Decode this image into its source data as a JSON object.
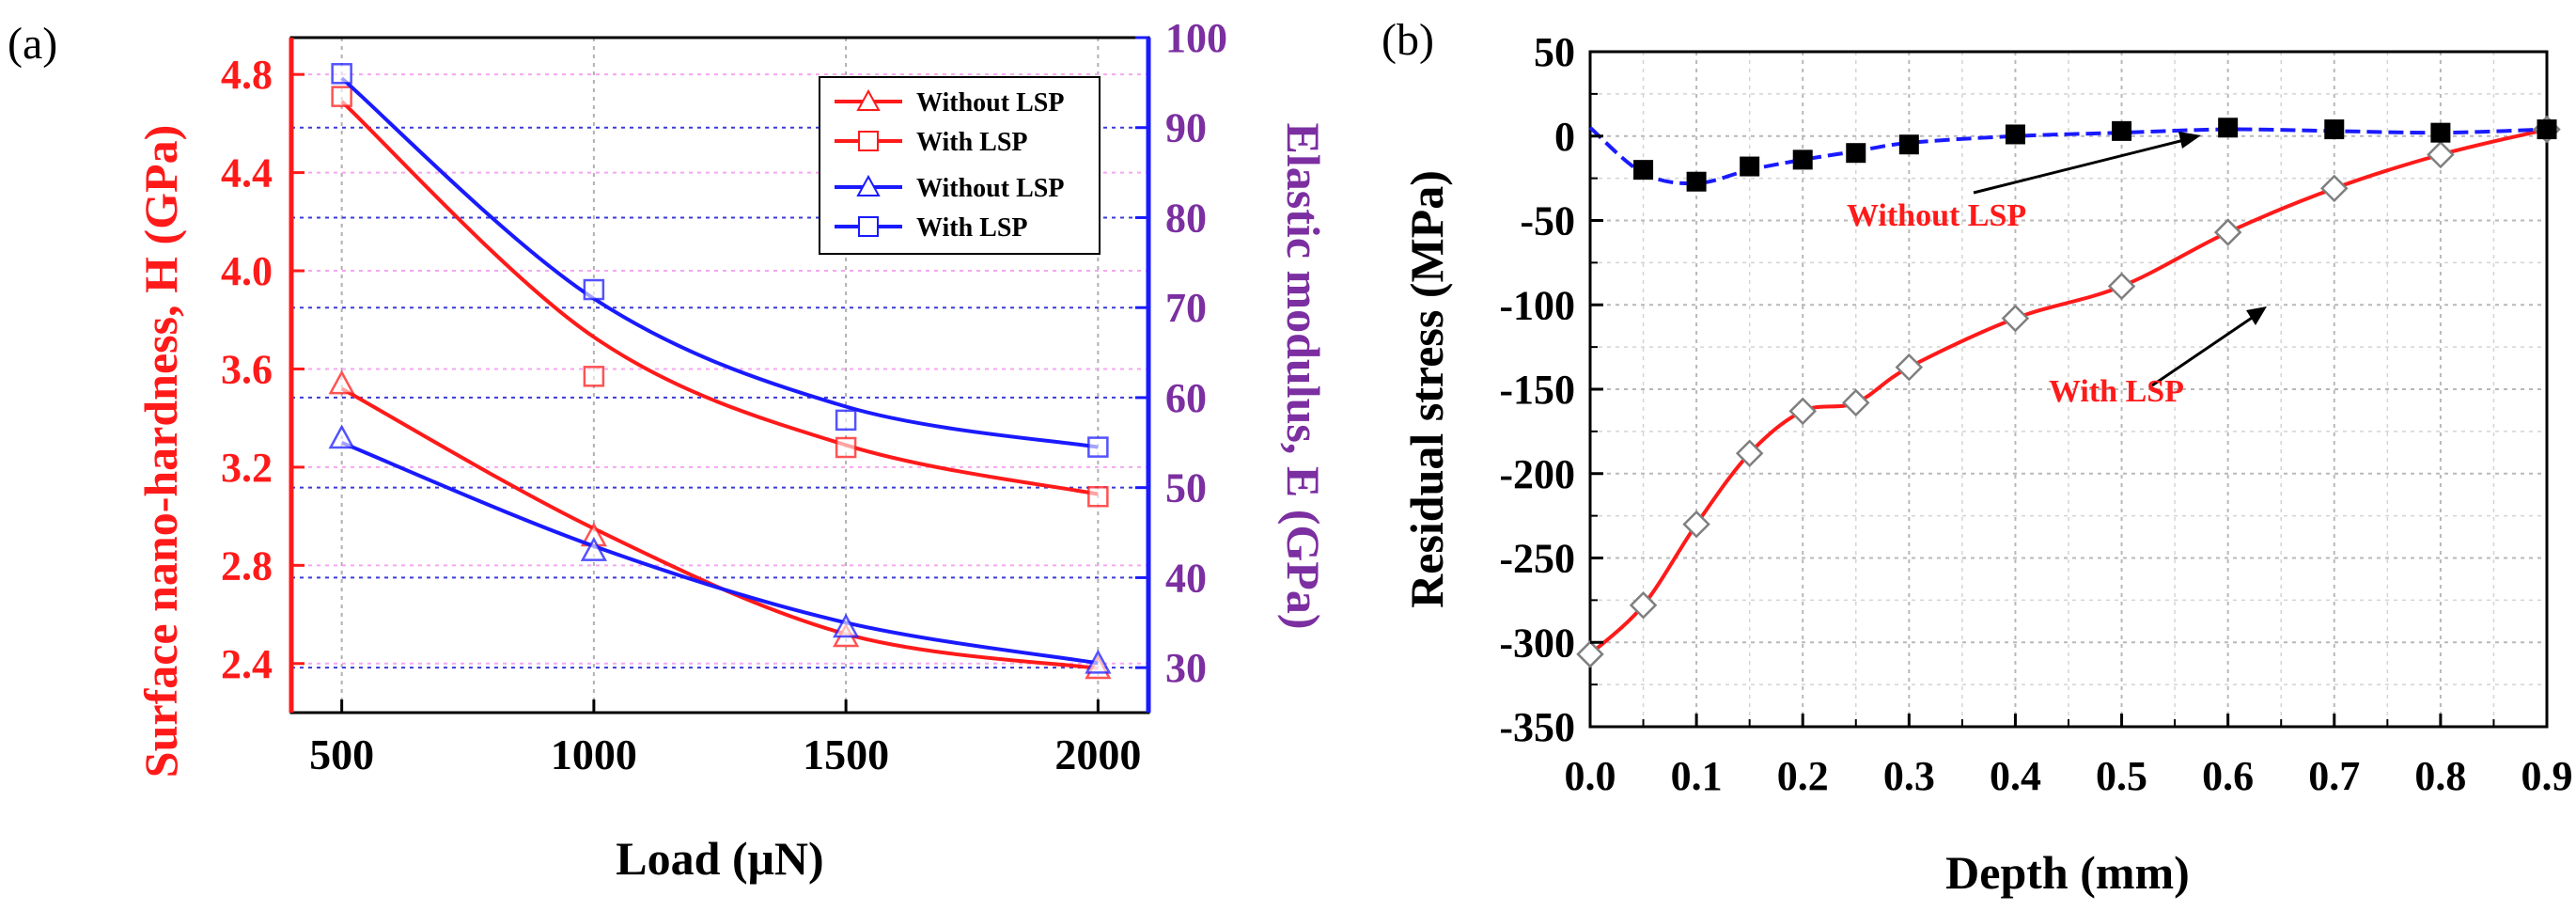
{
  "chart_data": [
    {
      "panel": "(a)",
      "type": "line",
      "xlabel": "Load  (μN)",
      "ylabel_left": "Surface nano-hardness, H (GPa)",
      "ylabel_right": "Elastic modulus, E (GPa)",
      "xlim": [
        400,
        2100
      ],
      "ylim_left": [
        2.2,
        4.95
      ],
      "ylim_right": [
        25,
        100
      ],
      "x_ticks": [
        {
          "v": 500,
          "label": "500"
        },
        {
          "v": 1000,
          "label": "1000"
        },
        {
          "v": 1500,
          "label": "1500"
        },
        {
          "v": 2000,
          "label": "2000"
        }
      ],
      "y_left_ticks": [
        {
          "v": 2.4,
          "label": "2.4"
        },
        {
          "v": 2.8,
          "label": "2.8"
        },
        {
          "v": 3.2,
          "label": "3.2"
        },
        {
          "v": 3.6,
          "label": "3.6"
        },
        {
          "v": 4.0,
          "label": "4.0"
        },
        {
          "v": 4.4,
          "label": "4.4"
        },
        {
          "v": 4.8,
          "label": "4.8"
        }
      ],
      "y_right_ticks": [
        {
          "v": 30,
          "label": "30"
        },
        {
          "v": 40,
          "label": "40"
        },
        {
          "v": 50,
          "label": "50"
        },
        {
          "v": 60,
          "label": "60"
        },
        {
          "v": 70,
          "label": "70"
        },
        {
          "v": 80,
          "label": "80"
        },
        {
          "v": 90,
          "label": "90"
        },
        {
          "v": 100,
          "label": "100"
        }
      ],
      "series": [
        {
          "name": "Without LSP",
          "axis": "left",
          "color": "#ff1a1a",
          "marker": "triangle",
          "x": [
            500,
            1000,
            1500,
            2000
          ],
          "values": [
            3.54,
            2.92,
            2.51,
            2.38
          ],
          "fit": [
            3.52,
            2.95,
            2.52,
            2.38
          ]
        },
        {
          "name": "With  LSP",
          "axis": "left",
          "color": "#ff1a1a",
          "marker": "square",
          "x": [
            500,
            1000,
            1500,
            2000
          ],
          "values": [
            4.71,
            3.57,
            3.28,
            3.08
          ],
          "fit": [
            4.69,
            3.73,
            3.29,
            3.09
          ]
        },
        {
          "name": "Without LSP",
          "axis": "right",
          "color": "#1a1aff",
          "marker": "triangle",
          "x": [
            500,
            1000,
            1500,
            2000
          ],
          "values": [
            55.5,
            43,
            34.5,
            30.5
          ],
          "fit": [
            55,
            43.5,
            35,
            30.5
          ]
        },
        {
          "name": "With  LSP",
          "axis": "right",
          "color": "#1a1aff",
          "marker": "square",
          "x": [
            500,
            1000,
            1500,
            2000
          ],
          "values": [
            96,
            72,
            57.5,
            54.5
          ],
          "fit": [
            95.5,
            71,
            59,
            54.5
          ]
        }
      ]
    },
    {
      "panel": "(b)",
      "type": "line",
      "xlabel": "Depth (mm)",
      "ylabel": "Residual stress (MPa)",
      "xlim": [
        0.0,
        0.9
      ],
      "ylim": [
        -350,
        50
      ],
      "x_ticks": [
        {
          "v": 0.0,
          "label": "0.0"
        },
        {
          "v": 0.1,
          "label": "0.1"
        },
        {
          "v": 0.2,
          "label": "0.2"
        },
        {
          "v": 0.3,
          "label": "0.3"
        },
        {
          "v": 0.4,
          "label": "0.4"
        },
        {
          "v": 0.5,
          "label": "0.5"
        },
        {
          "v": 0.6,
          "label": "0.6"
        },
        {
          "v": 0.7,
          "label": "0.7"
        },
        {
          "v": 0.8,
          "label": "0.8"
        },
        {
          "v": 0.9,
          "label": "0.9"
        }
      ],
      "y_ticks": [
        {
          "v": 50,
          "label": "50"
        },
        {
          "v": 0,
          "label": "0"
        },
        {
          "v": -50,
          "label": "-50"
        },
        {
          "v": -100,
          "label": "-100"
        },
        {
          "v": -150,
          "label": "-150"
        },
        {
          "v": -200,
          "label": "-200"
        },
        {
          "v": -250,
          "label": "-250"
        },
        {
          "v": -300,
          "label": "-300"
        },
        {
          "v": -350,
          "label": "-350"
        }
      ],
      "series": [
        {
          "name": "Without LSP",
          "line_color": "#1a1aff",
          "marker_color": "#000000",
          "marker": "filled-square",
          "line_style": "dashed",
          "x": [
            0.0,
            0.05,
            0.1,
            0.15,
            0.2,
            0.25,
            0.3,
            0.4,
            0.5,
            0.6,
            0.7,
            0.8,
            0.9
          ],
          "values": [
            5,
            -20,
            -27,
            -18,
            -14,
            -10,
            -5,
            1,
            3,
            5,
            4,
            2,
            4
          ],
          "curve": [
            5,
            -22,
            -28,
            -20,
            -14,
            -9,
            -4,
            0,
            2,
            4,
            3,
            2,
            4
          ]
        },
        {
          "name": "With LSP",
          "line_color": "#ff1a1a",
          "marker_color": "#7f7f7f",
          "marker": "open-diamond",
          "line_style": "solid",
          "x": [
            0.0,
            0.05,
            0.1,
            0.15,
            0.2,
            0.25,
            0.3,
            0.4,
            0.5,
            0.6,
            0.7,
            0.8,
            0.9
          ],
          "values": [
            -307,
            -278,
            -230,
            -188,
            -163,
            -158,
            -137,
            -108,
            -89,
            -57,
            -31,
            -11,
            4
          ]
        }
      ],
      "annotations": [
        {
          "text": "Without LSP",
          "color": "#ff1a1a",
          "anchor_x": 0.37,
          "anchor_y": -5
        },
        {
          "text": "With LSP",
          "color": "#ff1a1a",
          "anchor_x": 0.48,
          "anchor_y": -111
        }
      ]
    }
  ],
  "panel_labels": [
    "(a)",
    "(b)"
  ]
}
